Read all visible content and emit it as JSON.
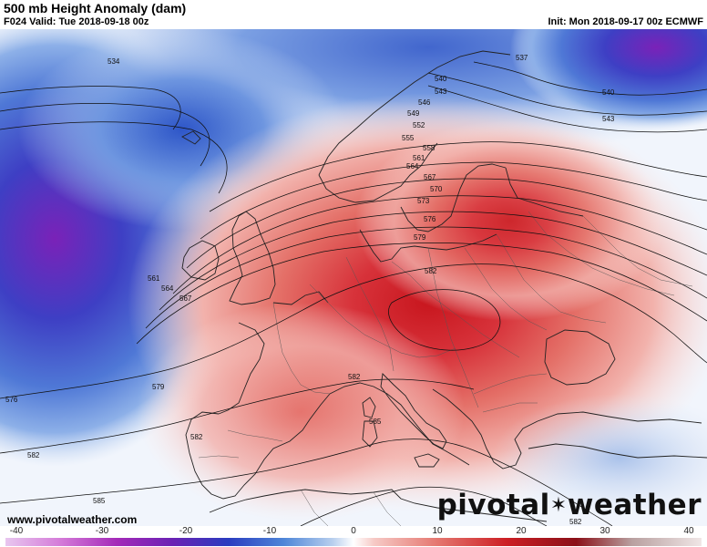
{
  "header": {
    "title": "500 mb Height Anomaly (dam)",
    "valid": "F024 Valid: Tue 2018-09-18 00z",
    "init": "Init: Mon 2018-09-17 00z ECMWF"
  },
  "map": {
    "contour_labels": [
      "534",
      "537",
      "540",
      "543",
      "540",
      "543",
      "546",
      "549",
      "552",
      "555",
      "558",
      "561",
      "564",
      "567",
      "570",
      "573",
      "576",
      "579",
      "582",
      "561",
      "564",
      "567",
      "576",
      "579",
      "582",
      "582",
      "585",
      "582",
      "585",
      "582"
    ],
    "anomaly_colors": {
      "strong_negative": "#6a1fb0",
      "negative": "#2f55c8",
      "weak_negative": "#a9c3ec",
      "neutral": "#ffffff",
      "weak_positive": "#f3b3b0",
      "positive": "#e06560",
      "strong_positive": "#c8161e"
    }
  },
  "colorbar": {
    "ticks": [
      "-40",
      "-30",
      "-20",
      "-10",
      "0",
      "10",
      "20",
      "30",
      "40"
    ]
  },
  "footer": {
    "url": "www.pivotalweather.com",
    "brand_left": "pivotal",
    "brand_right": "weather"
  }
}
